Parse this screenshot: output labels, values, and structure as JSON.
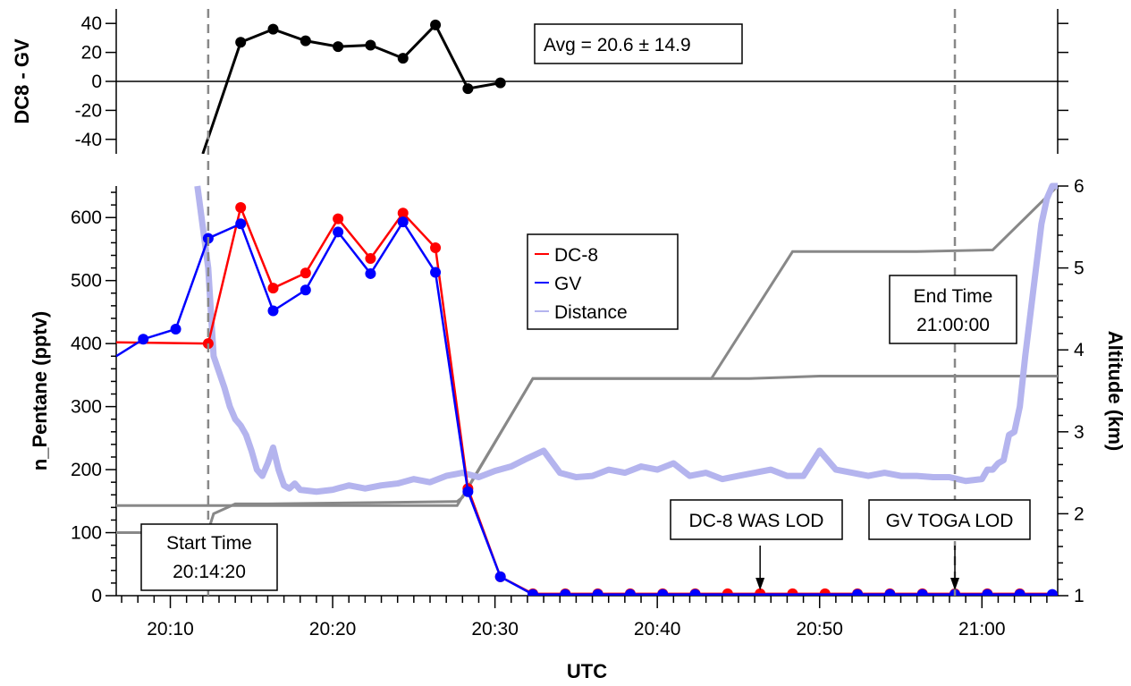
{
  "chart_data": [
    {
      "type": "line",
      "panel": "top",
      "ylabel": "DC8 - GV",
      "ylim": [
        -50,
        50
      ],
      "yticks": [
        40,
        20,
        0,
        -20,
        -40
      ],
      "ytick_labels": [
        "40",
        "20",
        "0",
        "-20",
        "-40"
      ],
      "zero_line": true,
      "series": [
        {
          "color": "#000000",
          "line_x": [
            "20:12:00",
            "20:14:20"
          ],
          "line_y": [
            -50,
            27
          ],
          "x": [
            "20:14:20",
            "20:16:20",
            "20:18:20",
            "20:20:20",
            "20:22:20",
            "20:24:20",
            "20:26:20",
            "20:28:20",
            "20:30:20"
          ],
          "y": [
            27,
            36,
            28,
            24,
            25,
            16,
            39,
            -5,
            -1
          ]
        }
      ],
      "annotation": "Avg = 20.6 ± 14.9"
    },
    {
      "type": "line",
      "panel": "bottom",
      "xlabel": "UTC",
      "ylabel": "n_Pentane (pptv)",
      "y2label": "Altitude (km)",
      "xlim": [
        "20:06:40",
        "21:04:40"
      ],
      "ylim": [
        0,
        650
      ],
      "y2lim": [
        1,
        6
      ],
      "xticks": [
        "20:10",
        "20:20",
        "20:30",
        "20:40",
        "20:50",
        "21:00"
      ],
      "yticks": [
        0,
        100,
        200,
        300,
        400,
        500,
        600
      ],
      "y2ticks": [
        1,
        2,
        3,
        4,
        5,
        6
      ],
      "legend": {
        "placement": "upper-middle",
        "entries": [
          {
            "label": "DC-8",
            "color": "#ff0000"
          },
          {
            "label": "GV",
            "color": "#0000ff"
          },
          {
            "label": "Distance",
            "color": "#b4b4ee"
          }
        ]
      },
      "series": [
        {
          "name": "DC-8",
          "color": "#ff0000",
          "x": [
            "20:06:40",
            "20:12:20",
            "20:14:20",
            "20:16:20",
            "20:18:20",
            "20:20:20",
            "20:22:20",
            "20:24:20",
            "20:26:20",
            "20:28:20",
            "20:30:20",
            "20:32:20",
            "20:34:20",
            "20:36:20",
            "20:38:20",
            "20:40:20",
            "20:42:20",
            "20:44:20",
            "20:46:20",
            "20:48:20",
            "20:50:20",
            "20:52:20",
            "20:54:20",
            "20:56:20",
            "20:58:20",
            "21:00:20",
            "21:02:20",
            "21:04:40"
          ],
          "y": [
            402,
            400,
            616,
            488,
            512,
            598,
            535,
            607,
            552,
            170,
            30,
            3,
            3,
            3,
            3,
            3,
            3,
            3,
            3,
            3,
            3,
            3,
            3,
            3,
            3,
            3,
            3,
            3
          ],
          "markers_from_index": 1,
          "markers_to_index": 26
        },
        {
          "name": "GV",
          "color": "#0000ff",
          "x": [
            "20:06:40",
            "20:08:20",
            "20:10:20",
            "20:12:20",
            "20:14:20",
            "20:16:20",
            "20:18:20",
            "20:20:20",
            "20:22:20",
            "20:24:20",
            "20:26:20",
            "20:28:20",
            "20:30:20",
            "20:32:20",
            "20:34:20",
            "20:36:20",
            "20:38:20",
            "20:40:20",
            "20:42:20",
            "20:52:20",
            "20:54:20",
            "20:56:20",
            "20:58:20",
            "21:00:20",
            "21:02:20",
            "21:04:20"
          ],
          "y": [
            380,
            407,
            423,
            567,
            590,
            452,
            485,
            577,
            511,
            593,
            513,
            165,
            30,
            2,
            2,
            2,
            2,
            2,
            2,
            2,
            2,
            2,
            2,
            2,
            2,
            2
          ],
          "markers_from_index": 1,
          "markers_to_index": 25
        },
        {
          "name": "Distance",
          "color": "#b4b4ee",
          "x": [
            "20:11:40",
            "20:12:20",
            "20:12:40",
            "20:13:20",
            "20:13:40",
            "20:14:00",
            "20:14:20",
            "20:14:40",
            "20:15:00",
            "20:15:20",
            "20:15:40",
            "20:16:00",
            "20:16:20",
            "20:16:40",
            "20:17:00",
            "20:17:20",
            "20:17:40",
            "20:18:00",
            "20:19:00",
            "20:20:00",
            "20:21:00",
            "20:22:00",
            "20:23:00",
            "20:24:00",
            "20:25:00",
            "20:26:00",
            "20:27:00",
            "20:28:00",
            "20:29:00",
            "20:30:00",
            "20:31:00",
            "20:32:00",
            "20:33:00",
            "20:34:00",
            "20:35:00",
            "20:36:00",
            "20:37:00",
            "20:38:00",
            "20:39:00",
            "20:40:00",
            "20:41:00",
            "20:42:00",
            "20:43:00",
            "20:44:00",
            "20:45:00",
            "20:46:00",
            "20:47:00",
            "20:48:00",
            "20:49:00",
            "20:50:00",
            "20:51:00",
            "20:52:00",
            "20:53:00",
            "20:54:00",
            "20:55:00",
            "20:56:00",
            "20:57:00",
            "20:58:00",
            "20:59:00",
            "21:00:00",
            "21:00:20",
            "21:00:40",
            "21:01:00",
            "21:01:20",
            "21:01:40",
            "21:02:00",
            "21:02:20",
            "21:02:40",
            "21:03:00",
            "21:03:20",
            "21:03:40",
            "21:04:00",
            "21:04:20",
            "21:04:40"
          ],
          "y": [
            650,
            520,
            380,
            330,
            300,
            280,
            270,
            255,
            230,
            200,
            190,
            210,
            235,
            200,
            175,
            170,
            178,
            168,
            165,
            168,
            175,
            170,
            175,
            178,
            185,
            180,
            190,
            195,
            188,
            198,
            205,
            218,
            230,
            195,
            188,
            190,
            200,
            195,
            205,
            200,
            210,
            190,
            195,
            185,
            190,
            195,
            200,
            190,
            190,
            230,
            200,
            195,
            190,
            195,
            190,
            190,
            188,
            188,
            182,
            185,
            200,
            200,
            210,
            215,
            255,
            260,
            300,
            380,
            450,
            520,
            590,
            630,
            650,
            650
          ]
        },
        {
          "name": "Altitude (DC-8)",
          "color": "#888888",
          "axis": "y2",
          "x": [
            "20:06:40",
            "20:10:00",
            "20:12:20",
            "20:12:40",
            "20:14:00",
            "20:16:00",
            "20:20:00",
            "20:24:00",
            "20:27:40",
            "20:28:00",
            "20:32:20",
            "20:34:00",
            "20:40:00",
            "20:45:40",
            "20:50:00",
            "20:55:00",
            "21:00:00",
            "21:04:40"
          ],
          "y": [
            1.77,
            1.77,
            1.79,
            2.0,
            2.12,
            2.12,
            2.13,
            2.14,
            2.15,
            2.2,
            3.65,
            3.65,
            3.65,
            3.65,
            3.68,
            3.68,
            3.68,
            3.68
          ],
          "note": "drawn as a single gray altitude trace (lower)"
        },
        {
          "name": "Altitude (GV)",
          "color": "#888888",
          "axis": "y2",
          "x": [
            "20:06:40",
            "20:27:40",
            "20:32:20",
            "20:43:20",
            "20:48:20",
            "20:52:00",
            "20:56:00",
            "21:00:40",
            "21:04:40"
          ],
          "y": [
            2.1,
            2.1,
            3.65,
            3.65,
            5.2,
            5.2,
            5.2,
            5.22,
            6.0
          ],
          "note": "drawn as a single gray altitude trace (upper)"
        }
      ],
      "vlines": [
        {
          "x": "20:12:20",
          "style": "dashed"
        },
        {
          "x": "20:58:20",
          "style": "dashed"
        }
      ],
      "annotations": {
        "start_line1": "Start Time",
        "start_line2": "20:14:20",
        "end_line1": "End Time",
        "end_line2": "21:00:00",
        "dc8_lod": "DC-8 WAS LOD",
        "gv_lod": "GV TOGA LOD"
      }
    }
  ]
}
